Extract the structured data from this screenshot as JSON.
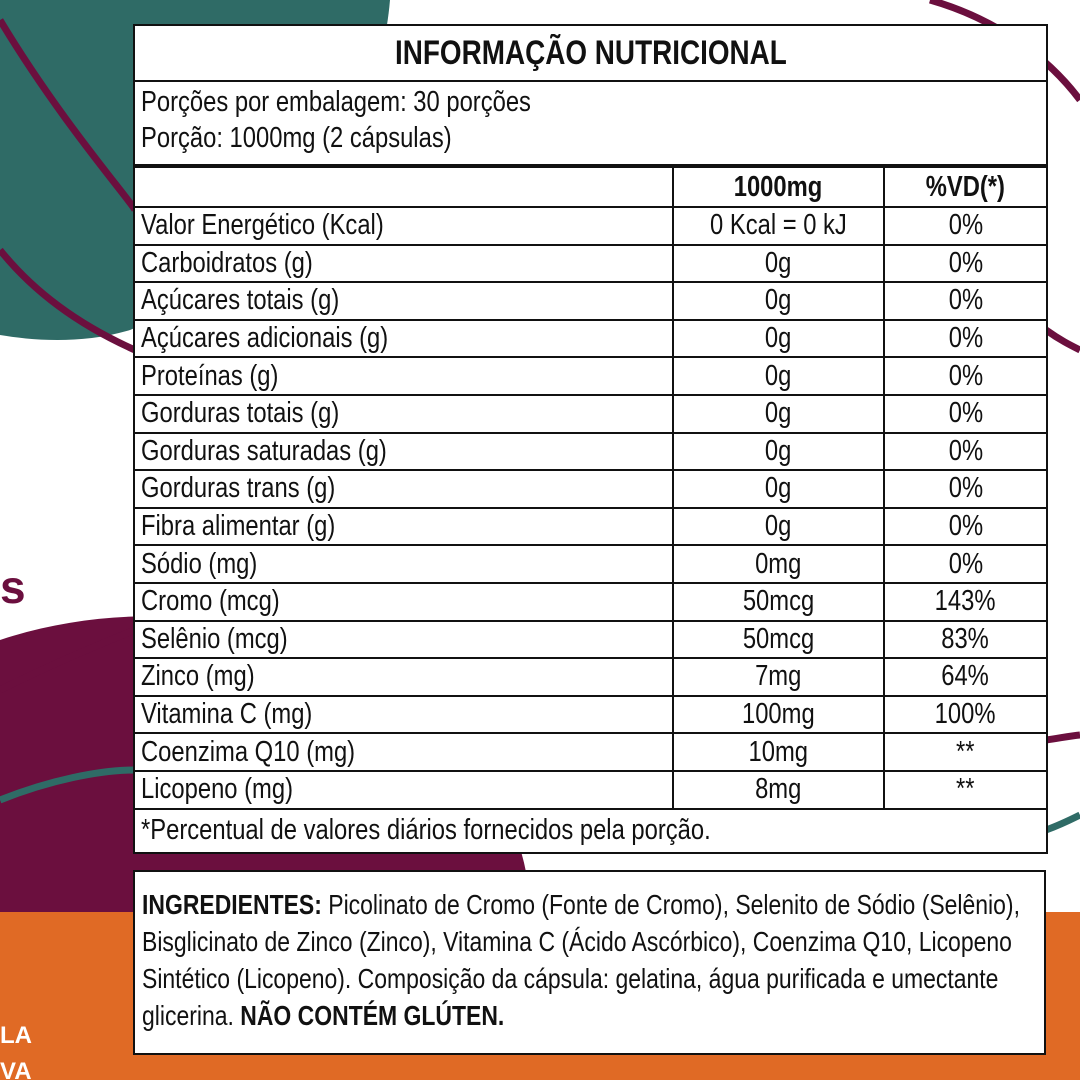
{
  "background_texts": [
    "s",
    "LA",
    "VA"
  ],
  "table": {
    "title": "INFORMAÇÃO NUTRICIONAL",
    "servings": [
      "Porções por embalagem: 30 porções",
      "Porção: 1000mg (2 cápsulas)"
    ],
    "header": [
      "1000mg",
      "%VD(*)"
    ],
    "rows": [
      [
        "Valor Energético (Kcal)",
        "0 Kcal = 0 kJ",
        "0%"
      ],
      [
        "Carboidratos (g)",
        "0g",
        "0%"
      ],
      [
        "Açúcares totais (g)",
        "0g",
        "0%"
      ],
      [
        "Açúcares adicionais (g)",
        "0g",
        "0%"
      ],
      [
        "Proteínas (g)",
        "0g",
        "0%"
      ],
      [
        "Gorduras totais (g)",
        "0g",
        "0%"
      ],
      [
        "Gorduras saturadas (g)",
        "0g",
        "0%"
      ],
      [
        "Gorduras trans (g)",
        "0g",
        "0%"
      ],
      [
        "Fibra alimentar (g)",
        "0g",
        "0%"
      ],
      [
        "Sódio (mg)",
        "0mg",
        "0%"
      ],
      [
        "Cromo (mcg)",
        "50mcg",
        "143%"
      ],
      [
        "Selênio (mcg)",
        "50mcg",
        "83%"
      ],
      [
        "Zinco (mg)",
        "7mg",
        "64%"
      ],
      [
        "Vitamina C (mg)",
        "100mg",
        "100%"
      ],
      [
        "Coenzima Q10 (mg)",
        "10mg",
        "**"
      ],
      [
        "Licopeno (mg)",
        "8mg",
        "**"
      ]
    ],
    "footnote": "*Percentual de valores diários fornecidos pela porção."
  },
  "ingredients": {
    "label": "INGREDIENTES:",
    "text": " Picolinato de Cromo (Fonte de Cromo), Selenito de Sódio (Selênio), Bisglicinato de Zinco (Zinco), Vitamina C (Ácido Ascórbico), Coenzima Q10, Licopeno Sintético (Licopeno). Composição da cápsula: gelatina, água purificada e umectante glicerina. ",
    "warning": "NÃO CONTÉM GLÚTEN."
  }
}
